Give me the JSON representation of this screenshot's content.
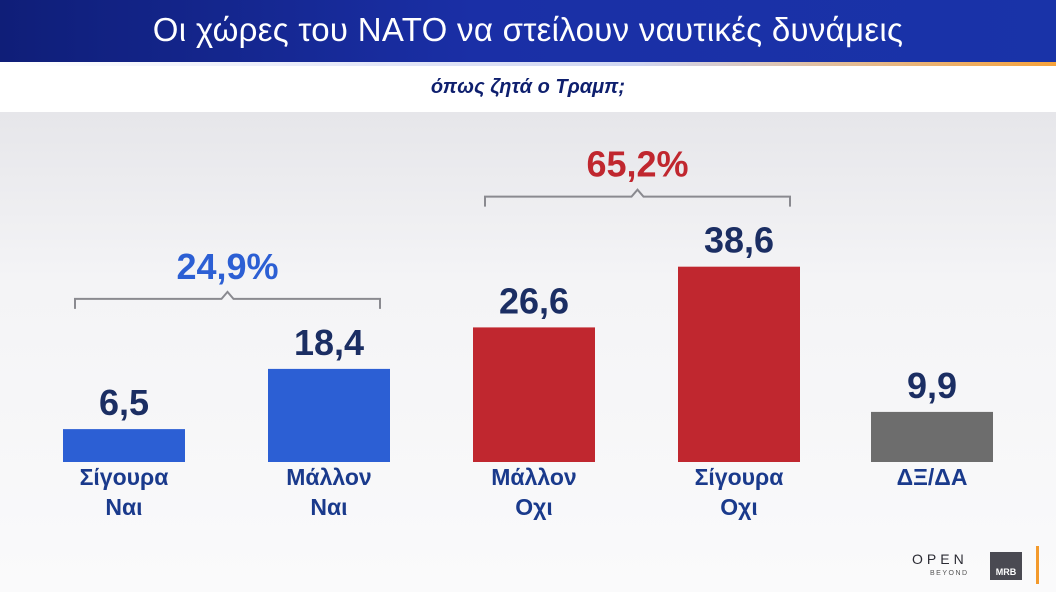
{
  "title": "Οι χώρες του ΝΑΤΟ να στείλουν ναυτικές δυνάμεις",
  "subtitle": "όπως ζητά ο Τραμπ;",
  "colors": {
    "yes": "#2c5fd4",
    "no": "#c0272f",
    "dk": "#6d6d6d",
    "label_blue": "#1a3a8c",
    "value_navy": "#1b2e63"
  },
  "chart_data": {
    "type": "bar",
    "categories": [
      [
        "Σίγουρα",
        "Ναι"
      ],
      [
        "Μάλλον",
        "Ναι"
      ],
      [
        "Μάλλον",
        "Οχι"
      ],
      [
        "Σίγουρα",
        "Οχι"
      ],
      [
        "ΔΞ/ΔΑ"
      ]
    ],
    "values": [
      6.5,
      18.4,
      26.6,
      38.6,
      9.9
    ],
    "value_labels": [
      "6,5",
      "18,4",
      "26,6",
      "38,6",
      "9,9"
    ],
    "bar_colors": [
      "yes",
      "yes",
      "no",
      "no",
      "dk"
    ],
    "groups": [
      {
        "label": "24,9%",
        "from": 0,
        "to": 1,
        "color": "yes"
      },
      {
        "label": "65,2%",
        "from": 2,
        "to": 3,
        "color": "no"
      }
    ],
    "ylim": [
      0,
      40
    ],
    "grid": false,
    "legend": "none"
  },
  "logos": {
    "open": "OPEN",
    "beyond": "BEYOND",
    "mrb": "MRB"
  }
}
